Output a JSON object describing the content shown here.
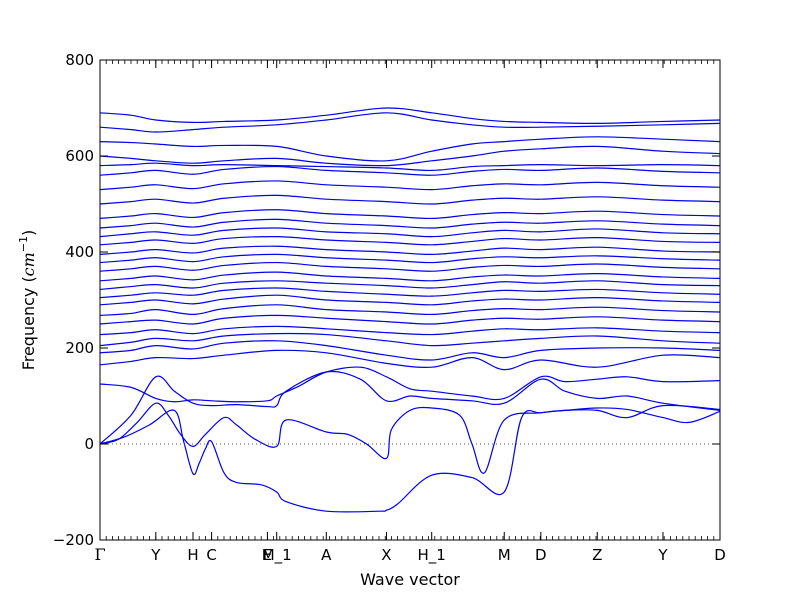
{
  "chart_data": {
    "type": "line",
    "title": "",
    "xlabel": "Wave vector",
    "ylabel_main": "Frequency (",
    "ylabel_unit_base": "cm",
    "ylabel_unit_exp": "−1",
    "ylabel_close": ")",
    "ylim": [
      -200,
      800
    ],
    "yticks": [
      -200,
      0,
      200,
      400,
      600,
      800
    ],
    "ytick_labels": [
      "−200",
      "0",
      "200",
      "400",
      "600",
      "800"
    ],
    "xlim": [
      0,
      1
    ],
    "grid": false,
    "zero_reference_line": 0,
    "symmetry_points": [
      {
        "label": "Γ",
        "x": 0.0
      },
      {
        "label": "Y",
        "x": 0.09
      },
      {
        "label": "H",
        "x": 0.15
      },
      {
        "label": "C",
        "x": 0.18
      },
      {
        "label": "E",
        "x": 0.27
      },
      {
        "label": "M_1",
        "x": 0.285
      },
      {
        "label": "A",
        "x": 0.365
      },
      {
        "label": "X",
        "x": 0.462
      },
      {
        "label": "H_1",
        "x": 0.535
      },
      {
        "label": "M",
        "x": 0.652
      },
      {
        "label": "D",
        "x": 0.711
      },
      {
        "label": "Z",
        "x": 0.802
      },
      {
        "label": "Y",
        "x": 0.908
      },
      {
        "label": "D",
        "x": 1.0
      }
    ],
    "series": [
      {
        "x": [
          0,
          0.04,
          0.08,
          0.12,
          0.135,
          0.15,
          0.16,
          0.17,
          0.18,
          0.2,
          0.22,
          0.26,
          0.285,
          0.3,
          0.365,
          0.45,
          0.462,
          0.48,
          0.535,
          0.6,
          0.652,
          0.68,
          0.711,
          0.75,
          0.802,
          0.85,
          0.908,
          0.95,
          1.0
        ],
        "values": [
          0,
          15,
          40,
          70,
          5,
          -62,
          -40,
          -10,
          5,
          -60,
          -80,
          -85,
          -100,
          -120,
          -140,
          -140,
          -138,
          -125,
          -65,
          -70,
          -100,
          55,
          65,
          70,
          75,
          72,
          55,
          45,
          68
        ]
      },
      {
        "x": [
          0,
          0.03,
          0.06,
          0.09,
          0.11,
          0.13,
          0.15,
          0.17,
          0.2,
          0.22,
          0.25,
          0.285,
          0.3,
          0.365,
          0.4,
          0.43,
          0.462,
          0.47,
          0.5,
          0.535,
          0.58,
          0.6,
          0.62,
          0.652,
          0.711,
          0.75,
          0.802,
          0.85,
          0.908,
          1.0
        ],
        "values": [
          0,
          10,
          45,
          85,
          60,
          20,
          -5,
          20,
          55,
          40,
          10,
          -5,
          50,
          25,
          20,
          0,
          -30,
          30,
          70,
          75,
          60,
          0,
          -60,
          50,
          65,
          70,
          70,
          55,
          80,
          72
        ]
      },
      {
        "x": [
          0,
          0.05,
          0.09,
          0.12,
          0.15,
          0.18,
          0.22,
          0.27,
          0.285,
          0.3,
          0.365,
          0.42,
          0.462,
          0.5,
          0.535,
          0.6,
          0.652,
          0.711,
          0.75,
          0.802,
          0.85,
          0.908,
          1.0
        ],
        "values": [
          0,
          60,
          140,
          110,
          85,
          80,
          82,
          78,
          80,
          110,
          150,
          135,
          90,
          100,
          95,
          90,
          85,
          135,
          110,
          95,
          100,
          85,
          70
        ]
      },
      {
        "x": [
          0,
          0.05,
          0.09,
          0.12,
          0.15,
          0.18,
          0.22,
          0.27,
          0.285,
          0.32,
          0.365,
          0.42,
          0.462,
          0.5,
          0.535,
          0.6,
          0.652,
          0.711,
          0.75,
          0.802,
          0.85,
          0.908,
          1.0
        ],
        "values": [
          125,
          118,
          95,
          88,
          92,
          90,
          88,
          90,
          100,
          120,
          150,
          160,
          140,
          115,
          110,
          100,
          95,
          140,
          130,
          135,
          140,
          130,
          132
        ]
      },
      {
        "x": [
          0,
          0.05,
          0.09,
          0.15,
          0.2,
          0.285,
          0.365,
          0.462,
          0.535,
          0.6,
          0.652,
          0.711,
          0.802,
          0.908,
          1.0
        ],
        "values": [
          165,
          172,
          180,
          178,
          185,
          195,
          190,
          168,
          160,
          180,
          155,
          175,
          160,
          185,
          180
        ]
      },
      {
        "x": [
          0,
          0.05,
          0.09,
          0.15,
          0.2,
          0.285,
          0.365,
          0.462,
          0.535,
          0.6,
          0.652,
          0.711,
          0.802,
          0.908,
          1.0
        ],
        "values": [
          190,
          195,
          205,
          198,
          210,
          215,
          205,
          185,
          175,
          190,
          180,
          195,
          200,
          200,
          195
        ]
      },
      {
        "x": [
          0,
          0.05,
          0.09,
          0.15,
          0.2,
          0.285,
          0.365,
          0.462,
          0.535,
          0.6,
          0.652,
          0.711,
          0.802,
          0.908,
          1.0
        ],
        "values": [
          205,
          212,
          220,
          215,
          225,
          230,
          228,
          215,
          205,
          210,
          215,
          220,
          225,
          215,
          210
        ]
      },
      {
        "x": [
          0,
          0.05,
          0.09,
          0.15,
          0.2,
          0.285,
          0.365,
          0.462,
          0.535,
          0.6,
          0.652,
          0.711,
          0.802,
          0.908,
          1.0
        ],
        "values": [
          228,
          232,
          238,
          230,
          240,
          245,
          240,
          232,
          228,
          235,
          240,
          238,
          242,
          235,
          232
        ]
      },
      {
        "x": [
          0,
          0.05,
          0.09,
          0.15,
          0.2,
          0.285,
          0.365,
          0.462,
          0.535,
          0.6,
          0.652,
          0.711,
          0.802,
          0.908,
          1.0
        ],
        "values": [
          250,
          255,
          258,
          250,
          262,
          268,
          262,
          255,
          250,
          258,
          262,
          260,
          265,
          258,
          255
        ]
      },
      {
        "x": [
          0,
          0.05,
          0.09,
          0.15,
          0.2,
          0.285,
          0.365,
          0.462,
          0.535,
          0.6,
          0.652,
          0.711,
          0.802,
          0.908,
          1.0
        ],
        "values": [
          268,
          272,
          280,
          270,
          282,
          290,
          280,
          275,
          270,
          278,
          282,
          280,
          285,
          278,
          275
        ]
      },
      {
        "x": [
          0,
          0.05,
          0.09,
          0.15,
          0.2,
          0.285,
          0.365,
          0.462,
          0.535,
          0.6,
          0.652,
          0.711,
          0.802,
          0.908,
          1.0
        ],
        "values": [
          290,
          295,
          300,
          292,
          302,
          310,
          300,
          295,
          290,
          298,
          302,
          300,
          305,
          298,
          295
        ]
      },
      {
        "x": [
          0,
          0.05,
          0.09,
          0.15,
          0.2,
          0.285,
          0.365,
          0.462,
          0.535,
          0.6,
          0.652,
          0.711,
          0.802,
          0.908,
          1.0
        ],
        "values": [
          305,
          310,
          315,
          310,
          320,
          325,
          318,
          312,
          308,
          315,
          320,
          318,
          322,
          315,
          312
        ]
      },
      {
        "x": [
          0,
          0.05,
          0.09,
          0.15,
          0.2,
          0.285,
          0.365,
          0.462,
          0.535,
          0.6,
          0.652,
          0.711,
          0.802,
          0.908,
          1.0
        ],
        "values": [
          322,
          328,
          332,
          325,
          335,
          340,
          335,
          330,
          325,
          332,
          338,
          335,
          340,
          332,
          330
        ]
      },
      {
        "x": [
          0,
          0.05,
          0.09,
          0.15,
          0.2,
          0.285,
          0.365,
          0.462,
          0.535,
          0.6,
          0.652,
          0.711,
          0.802,
          0.908,
          1.0
        ],
        "values": [
          340,
          345,
          350,
          342,
          352,
          358,
          350,
          345,
          340,
          348,
          352,
          350,
          355,
          348,
          345
        ]
      },
      {
        "x": [
          0,
          0.05,
          0.09,
          0.15,
          0.2,
          0.285,
          0.365,
          0.462,
          0.535,
          0.6,
          0.652,
          0.711,
          0.802,
          0.908,
          1.0
        ],
        "values": [
          360,
          365,
          370,
          362,
          372,
          378,
          370,
          365,
          360,
          368,
          372,
          370,
          375,
          368,
          365
        ]
      },
      {
        "x": [
          0,
          0.05,
          0.09,
          0.15,
          0.2,
          0.285,
          0.365,
          0.462,
          0.535,
          0.6,
          0.652,
          0.711,
          0.802,
          0.908,
          1.0
        ],
        "values": [
          378,
          383,
          388,
          380,
          390,
          395,
          388,
          383,
          378,
          386,
          390,
          388,
          392,
          386,
          383
        ]
      },
      {
        "x": [
          0,
          0.05,
          0.09,
          0.15,
          0.2,
          0.285,
          0.365,
          0.462,
          0.535,
          0.6,
          0.652,
          0.711,
          0.802,
          0.908,
          1.0
        ],
        "values": [
          395,
          400,
          405,
          398,
          408,
          412,
          405,
          400,
          395,
          402,
          408,
          405,
          410,
          402,
          400
        ]
      },
      {
        "x": [
          0,
          0.05,
          0.09,
          0.15,
          0.2,
          0.285,
          0.365,
          0.462,
          0.535,
          0.6,
          0.652,
          0.711,
          0.802,
          0.908,
          1.0
        ],
        "values": [
          415,
          420,
          425,
          418,
          428,
          432,
          425,
          420,
          415,
          422,
          428,
          425,
          430,
          422,
          420
        ]
      },
      {
        "x": [
          0,
          0.05,
          0.09,
          0.15,
          0.2,
          0.285,
          0.365,
          0.462,
          0.535,
          0.6,
          0.652,
          0.711,
          0.802,
          0.908,
          1.0
        ],
        "values": [
          432,
          438,
          442,
          435,
          445,
          450,
          442,
          438,
          432,
          440,
          445,
          442,
          448,
          440,
          438
        ]
      },
      {
        "x": [
          0,
          0.05,
          0.09,
          0.15,
          0.2,
          0.285,
          0.365,
          0.462,
          0.535,
          0.6,
          0.652,
          0.711,
          0.802,
          0.908,
          1.0
        ],
        "values": [
          450,
          455,
          460,
          452,
          462,
          468,
          460,
          455,
          450,
          458,
          462,
          460,
          465,
          458,
          455
        ]
      },
      {
        "x": [
          0,
          0.05,
          0.09,
          0.15,
          0.2,
          0.285,
          0.365,
          0.462,
          0.535,
          0.6,
          0.652,
          0.711,
          0.802,
          0.908,
          1.0
        ],
        "values": [
          470,
          475,
          480,
          472,
          482,
          488,
          480,
          475,
          470,
          478,
          482,
          480,
          485,
          478,
          475
        ]
      },
      {
        "x": [
          0,
          0.05,
          0.09,
          0.15,
          0.2,
          0.285,
          0.365,
          0.462,
          0.535,
          0.6,
          0.652,
          0.711,
          0.802,
          0.908,
          1.0
        ],
        "values": [
          500,
          505,
          510,
          502,
          512,
          518,
          510,
          505,
          500,
          508,
          512,
          510,
          515,
          508,
          505
        ]
      },
      {
        "x": [
          0,
          0.05,
          0.09,
          0.15,
          0.2,
          0.285,
          0.365,
          0.462,
          0.535,
          0.6,
          0.652,
          0.711,
          0.802,
          0.908,
          1.0
        ],
        "values": [
          530,
          535,
          540,
          532,
          542,
          548,
          540,
          535,
          530,
          538,
          542,
          540,
          545,
          538,
          535
        ]
      },
      {
        "x": [
          0,
          0.05,
          0.09,
          0.15,
          0.2,
          0.285,
          0.365,
          0.462,
          0.535,
          0.6,
          0.652,
          0.711,
          0.802,
          0.908,
          1.0
        ],
        "values": [
          560,
          565,
          570,
          562,
          572,
          578,
          570,
          565,
          560,
          568,
          572,
          570,
          575,
          568,
          565
        ]
      },
      {
        "x": [
          0,
          0.05,
          0.09,
          0.15,
          0.2,
          0.285,
          0.365,
          0.462,
          0.535,
          0.6,
          0.652,
          0.711,
          0.802,
          0.908,
          1.0
        ],
        "values": [
          580,
          582,
          585,
          580,
          582,
          580,
          578,
          575,
          570,
          578,
          580,
          582,
          580,
          582,
          580
        ]
      },
      {
        "x": [
          0,
          0.05,
          0.09,
          0.15,
          0.2,
          0.285,
          0.365,
          0.462,
          0.535,
          0.6,
          0.652,
          0.711,
          0.802,
          0.908,
          1.0
        ],
        "values": [
          600,
          595,
          590,
          585,
          590,
          595,
          585,
          580,
          590,
          600,
          610,
          615,
          620,
          610,
          605
        ]
      },
      {
        "x": [
          0,
          0.05,
          0.09,
          0.15,
          0.2,
          0.285,
          0.365,
          0.462,
          0.535,
          0.6,
          0.652,
          0.711,
          0.802,
          0.908,
          1.0
        ],
        "values": [
          630,
          628,
          625,
          620,
          622,
          620,
          600,
          590,
          610,
          625,
          630,
          635,
          640,
          635,
          630
        ]
      },
      {
        "x": [
          0,
          0.05,
          0.09,
          0.15,
          0.2,
          0.285,
          0.365,
          0.462,
          0.535,
          0.6,
          0.652,
          0.711,
          0.802,
          0.908,
          1.0
        ],
        "values": [
          660,
          655,
          650,
          655,
          660,
          665,
          675,
          690,
          675,
          665,
          660,
          660,
          662,
          665,
          668
        ]
      },
      {
        "x": [
          0,
          0.05,
          0.09,
          0.15,
          0.2,
          0.285,
          0.365,
          0.462,
          0.535,
          0.6,
          0.652,
          0.711,
          0.802,
          0.908,
          1.0
        ],
        "values": [
          690,
          685,
          675,
          670,
          672,
          675,
          685,
          700,
          690,
          678,
          672,
          670,
          668,
          672,
          675
        ]
      }
    ],
    "colors": {
      "line": "#0000ee",
      "zero_line": "#555555",
      "axis": "#000000",
      "background": "#ffffff"
    }
  }
}
